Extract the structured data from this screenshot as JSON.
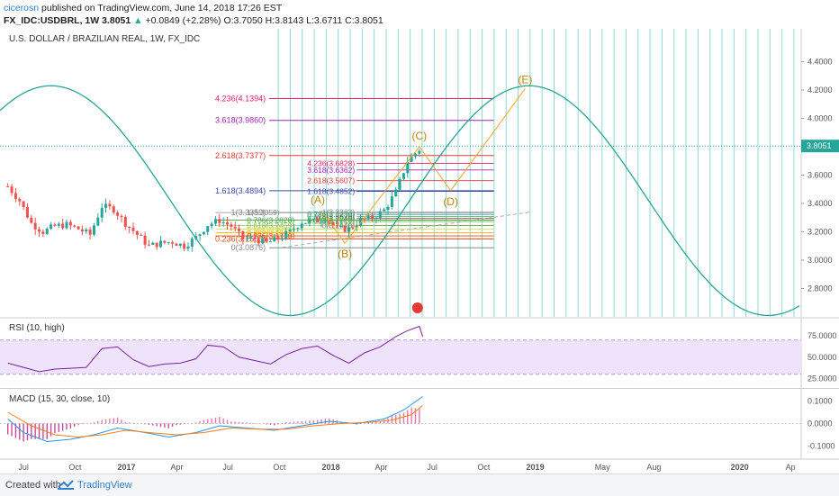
{
  "header": {
    "user": "cicerosn",
    "published_text": "published on TradingView.com, June 14, 2018 17:26 EST",
    "symbol": "FX_IDC:USDBRL, 1W",
    "last": "3.8051",
    "change": "+0.0849 (+2.28%)",
    "ohlc": "O:3.7050 H:3.8143 L:3.6711 C:3.8051"
  },
  "footer": {
    "created_with": "Created with",
    "brand": "TradingView"
  },
  "colors": {
    "up": "#26a69a",
    "down": "#ef5350",
    "sine": "#26a69a",
    "pattern": "#f5a623",
    "rsi": "#7b1fa2",
    "macd": "#2196f3",
    "signal": "#ff7f0e",
    "cycle": "#8fd8d2",
    "rsi_band": "#efe3fb"
  },
  "chart_data": [
    {
      "type": "candlestick",
      "title": "U.S. DOLLAR / BRAZILIAN REAL, 1W, FX_IDC",
      "ylim": [
        2.6,
        4.6
      ],
      "yticks": [
        "4.4000",
        "4.2000",
        "4.0000",
        "3.8000",
        "3.6000",
        "3.4000",
        "3.2000",
        "3.0000",
        "2.8000"
      ],
      "last_price_label": "3.8051",
      "x_tick_labels": [
        "Jul",
        "Oct",
        "2017",
        "Apr",
        "Jul",
        "Oct",
        "2018",
        "Apr",
        "Jul",
        "Oct",
        "2019",
        "May",
        "Aug",
        "2020",
        "Ap"
      ],
      "price_path": [
        [
          "2016-06-03",
          3.52
        ],
        [
          "2016-06-24",
          3.42
        ],
        [
          "2016-07-15",
          3.26
        ],
        [
          "2016-08-05",
          3.2
        ],
        [
          "2016-08-26",
          3.24
        ],
        [
          "2016-09-16",
          3.25
        ],
        [
          "2016-10-07",
          3.22
        ],
        [
          "2016-10-28",
          3.18
        ],
        [
          "2016-11-18",
          3.38
        ],
        [
          "2016-12-09",
          3.36
        ],
        [
          "2016-12-30",
          3.26
        ],
        [
          "2017-01-20",
          3.18
        ],
        [
          "2017-02-10",
          3.1
        ],
        [
          "2017-03-03",
          3.12
        ],
        [
          "2017-03-24",
          3.13
        ],
        [
          "2017-04-14",
          3.1
        ],
        [
          "2017-05-05",
          3.16
        ],
        [
          "2017-05-26",
          3.25
        ],
        [
          "2017-06-16",
          3.28
        ],
        [
          "2017-07-07",
          3.24
        ],
        [
          "2017-07-28",
          3.15
        ],
        [
          "2017-08-18",
          3.15
        ],
        [
          "2017-09-08",
          3.12
        ],
        [
          "2017-09-29",
          3.15
        ],
        [
          "2017-10-20",
          3.2
        ],
        [
          "2017-11-10",
          3.27
        ],
        [
          "2017-12-01",
          3.27
        ],
        [
          "2017-12-22",
          3.3
        ],
        [
          "2018-01-12",
          3.22
        ],
        [
          "2018-02-02",
          3.22
        ],
        [
          "2018-02-23",
          3.28
        ],
        [
          "2018-03-16",
          3.3
        ],
        [
          "2018-04-06",
          3.35
        ],
        [
          "2018-04-27",
          3.48
        ],
        [
          "2018-05-18",
          3.7
        ],
        [
          "2018-06-08",
          3.78
        ],
        [
          "2018-06-14",
          3.8051
        ]
      ],
      "fibonacci_major": [
        {
          "label": "0(3.0876)",
          "value": 3.0876
        },
        {
          "label": "0.236(3.1500)",
          "value": 3.15
        },
        {
          "label": "1(3.3359)",
          "value": 3.3359
        },
        {
          "label": "1.618(3.4894)",
          "value": 3.4894
        },
        {
          "label": "2.618(3.7377)",
          "value": 3.7377
        },
        {
          "label": "3.618(3.9860)",
          "value": 3.986
        },
        {
          "label": "4.236(4.1394)",
          "value": 4.1394
        }
      ],
      "fibonacci_minor_labels": [
        "4.236(3.6828)",
        "3.618(3.6362)",
        "2.618(3.5607)",
        "1.618(3.4852)",
        "1(3.3383)",
        "0.786(3.3230)",
        "0.618(3.3070)",
        "0.5(3.2940)",
        "0.382(3.2828)",
        "0.236(3.2719)",
        "0(3.2440)",
        "1(3.3359)",
        "0.786(3.2828)",
        "0.618(3.2459)",
        "0.5(3.2190)",
        "0.382(3.1942)",
        "0.236(3.1710)"
      ],
      "pattern_points": [
        {
          "label": "(A)",
          "date": "2017-12-15",
          "value": 3.35
        },
        {
          "label": "(B)",
          "date": "2018-01-26",
          "value": 3.12
        },
        {
          "label": "(C)",
          "date": "2018-06-08",
          "value": 3.8
        },
        {
          "label": "(D)",
          "date": "2018-08-03",
          "value": 3.49
        },
        {
          "label": "(E)",
          "date": "2018-12-14",
          "value": 4.21
        }
      ],
      "sine_wave": {
        "peak_date": "2018-12-21",
        "peak_value": 4.23
      }
    },
    {
      "type": "line",
      "title": "RSI (10, high)",
      "ylim": [
        15,
        95
      ],
      "yticks": [
        "75.0000",
        "50.0000",
        "25.0000"
      ],
      "bands": [
        70,
        30
      ],
      "values": [
        [
          "2016-06-03",
          43
        ],
        [
          "2016-07-01",
          38
        ],
        [
          "2016-07-29",
          33
        ],
        [
          "2016-08-26",
          36
        ],
        [
          "2016-09-23",
          37
        ],
        [
          "2016-10-21",
          38
        ],
        [
          "2016-11-18",
          60
        ],
        [
          "2016-12-16",
          62
        ],
        [
          "2017-01-13",
          47
        ],
        [
          "2017-02-10",
          39
        ],
        [
          "2017-03-10",
          42
        ],
        [
          "2017-04-07",
          43
        ],
        [
          "2017-05-05",
          48
        ],
        [
          "2017-05-26",
          64
        ],
        [
          "2017-06-23",
          62
        ],
        [
          "2017-07-21",
          50
        ],
        [
          "2017-08-18",
          46
        ],
        [
          "2017-09-15",
          42
        ],
        [
          "2017-10-13",
          53
        ],
        [
          "2017-11-10",
          60
        ],
        [
          "2017-12-08",
          63
        ],
        [
          "2018-01-05",
          52
        ],
        [
          "2018-02-02",
          43
        ],
        [
          "2018-03-02",
          55
        ],
        [
          "2018-03-30",
          62
        ],
        [
          "2018-04-27",
          74
        ],
        [
          "2018-05-18",
          81
        ],
        [
          "2018-06-08",
          86
        ],
        [
          "2018-06-14",
          74
        ]
      ]
    },
    {
      "type": "macd",
      "title": "MACD (15, 30, close, 10)",
      "ylim": [
        -0.15,
        0.15
      ],
      "yticks": [
        "0.1000",
        "0.0000",
        "-0.1000"
      ],
      "macd": [
        [
          "2016-06-03",
          0.02
        ],
        [
          "2016-07-01",
          -0.04
        ],
        [
          "2016-08-12",
          -0.08
        ],
        [
          "2016-09-23",
          -0.07
        ],
        [
          "2016-11-04",
          -0.05
        ],
        [
          "2016-12-16",
          -0.02
        ],
        [
          "2017-02-03",
          -0.04
        ],
        [
          "2017-03-17",
          -0.06
        ],
        [
          "2017-05-05",
          -0.04
        ],
        [
          "2017-06-16",
          -0.01
        ],
        [
          "2017-08-04",
          -0.02
        ],
        [
          "2017-09-22",
          -0.03
        ],
        [
          "2017-11-10",
          -0.01
        ],
        [
          "2017-12-29",
          0.01
        ],
        [
          "2018-02-16",
          0.0
        ],
        [
          "2018-04-06",
          0.02
        ],
        [
          "2018-05-11",
          0.06
        ],
        [
          "2018-06-14",
          0.12
        ]
      ],
      "signal": [
        [
          "2016-06-03",
          0.05
        ],
        [
          "2016-07-15",
          -0.01
        ],
        [
          "2016-08-26",
          -0.05
        ],
        [
          "2016-10-07",
          -0.06
        ],
        [
          "2016-11-18",
          -0.05
        ],
        [
          "2016-12-30",
          -0.03
        ],
        [
          "2017-02-10",
          -0.04
        ],
        [
          "2017-03-31",
          -0.05
        ],
        [
          "2017-05-19",
          -0.04
        ],
        [
          "2017-07-07",
          -0.02
        ],
        [
          "2017-08-25",
          -0.025
        ],
        [
          "2017-10-13",
          -0.025
        ],
        [
          "2017-12-01",
          -0.01
        ],
        [
          "2018-01-19",
          0.0
        ],
        [
          "2018-03-09",
          0.005
        ],
        [
          "2018-04-20",
          0.015
        ],
        [
          "2018-05-25",
          0.04
        ],
        [
          "2018-06-14",
          0.08
        ]
      ]
    }
  ]
}
